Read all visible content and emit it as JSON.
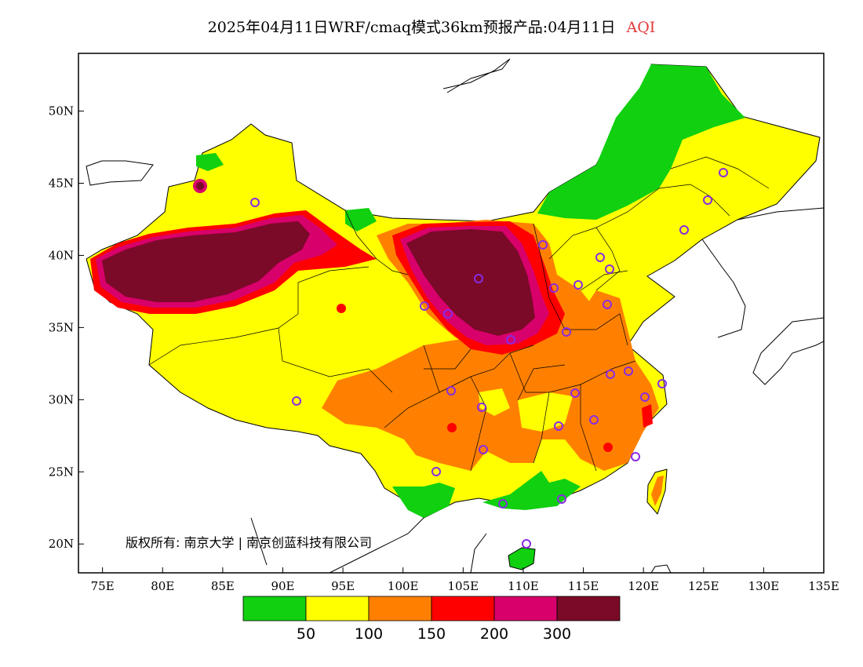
{
  "header": {
    "title": "2025年04月11日WRF/cmaq模式36km预报产品:04月11日",
    "variable": "AQI",
    "variable_color": "#e23a3a"
  },
  "map": {
    "lon_range": [
      73,
      135
    ],
    "lat_range": [
      18,
      54
    ],
    "lon_ticks": [
      "75E",
      "80E",
      "85E",
      "90E",
      "95E",
      "100E",
      "105E",
      "110E",
      "115E",
      "120E",
      "125E",
      "130E",
      "135E"
    ],
    "lat_ticks": [
      "20N",
      "25N",
      "30N",
      "35N",
      "40N",
      "45N",
      "50N"
    ],
    "lon_tick_values": [
      75,
      80,
      85,
      90,
      95,
      100,
      105,
      110,
      115,
      120,
      125,
      130,
      135
    ],
    "lat_tick_values": [
      20,
      25,
      30,
      35,
      40,
      45,
      50
    ],
    "copyright": "版权所有: 南京大学 | 南京创蓝科技有限公司"
  },
  "legend": {
    "colors": [
      "#10d010",
      "#ffff00",
      "#ff8000",
      "#ff0000",
      "#d8006a",
      "#7a0a28"
    ],
    "labels": [
      "50",
      "100",
      "150",
      "200",
      "300"
    ]
  },
  "colors": {
    "good": "#10d010",
    "moderate": "#ffff00",
    "sensitive": "#ff8000",
    "unhealthy": "#ff0000",
    "very_unhealthy": "#d8006a",
    "hazardous": "#7a0a28",
    "station_marker": "#8a2be2"
  }
}
